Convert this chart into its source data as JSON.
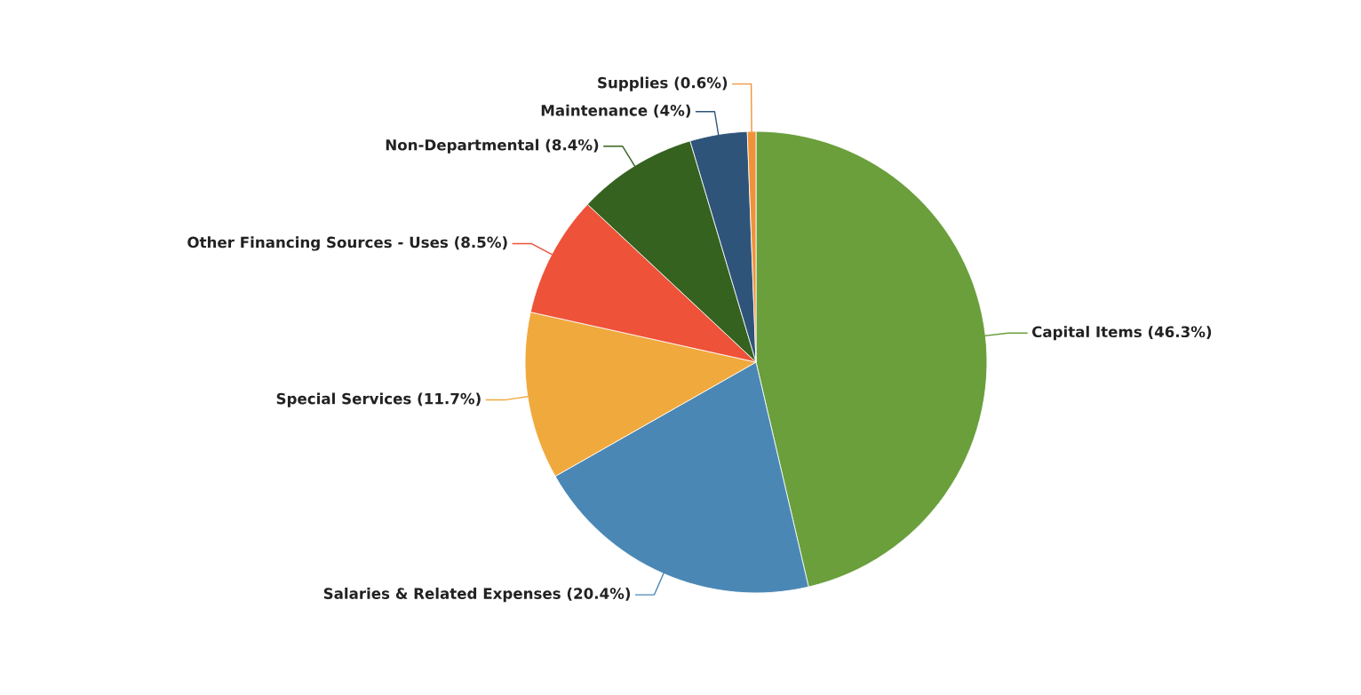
{
  "chart_data": {
    "type": "pie",
    "categories": [
      "Capital Items",
      "Salaries & Related Expenses",
      "Special Services",
      "Other Financing Sources - Uses",
      "Non-Departmental",
      "Maintenance",
      "Supplies"
    ],
    "values": [
      46.3,
      20.4,
      11.7,
      8.5,
      8.4,
      4,
      0.6
    ],
    "value_labels": [
      "(46.3%)",
      "(20.4%)",
      "(11.7%)",
      "(8.5%)",
      "(8.4%)",
      "(4%)",
      "(0.6%)"
    ],
    "colors": [
      "#6a9f3c",
      "#4a87b5",
      "#f0a93c",
      "#ee5239",
      "#35621f",
      "#2f547a",
      "#f0923a"
    ],
    "legend": false
  }
}
